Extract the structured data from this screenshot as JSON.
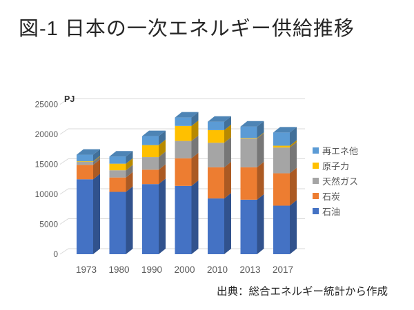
{
  "page": {
    "background": "#ffffff"
  },
  "title": "図-1 日本の一次エネルギー供給推移",
  "source_note": "出典：総合エネルギー統計から作成",
  "chart_data": {
    "type": "bar",
    "subtype": "3d-stacked-column",
    "title": "図-1 日本の一次エネルギー供給推移",
    "unit_label": "PJ",
    "xlabel": "",
    "ylabel": "PJ",
    "ylim": [
      0,
      25000
    ],
    "ytick_step": 5000,
    "yticks": [
      0,
      5000,
      10000,
      15000,
      20000,
      25000
    ],
    "grid": true,
    "gridline_color": "#D9D9D9",
    "axis_text_color": "#595959",
    "legend_position": "right",
    "categories": [
      "1973",
      "1980",
      "1990",
      "2000",
      "2010",
      "2013",
      "2017"
    ],
    "series": [
      {
        "name": "石油",
        "color": "#4472C4",
        "values": [
          12500,
          10400,
          11700,
          11400,
          9300,
          9100,
          8100
        ]
      },
      {
        "name": "石炭",
        "color": "#ED7D31",
        "values": [
          2400,
          2400,
          2400,
          4600,
          5200,
          5400,
          5400
        ]
      },
      {
        "name": "天然ガス",
        "color": "#A5A5A5",
        "values": [
          500,
          1200,
          2100,
          2900,
          4100,
          4800,
          4300
        ]
      },
      {
        "name": "原子力",
        "color": "#FFC000",
        "values": [
          100,
          1100,
          2000,
          2500,
          2100,
          100,
          300
        ]
      },
      {
        "name": "再エネ他",
        "color": "#5B9BD5",
        "values": [
          1100,
          1200,
          1500,
          1400,
          1400,
          1900,
          2200
        ]
      }
    ],
    "totals": [
      16600,
      16300,
      19700,
      22800,
      22100,
      21300,
      20300
    ],
    "legend_order_top_to_bottom": [
      "再エネ他",
      "原子力",
      "天然ガス",
      "石炭",
      "石油"
    ]
  }
}
